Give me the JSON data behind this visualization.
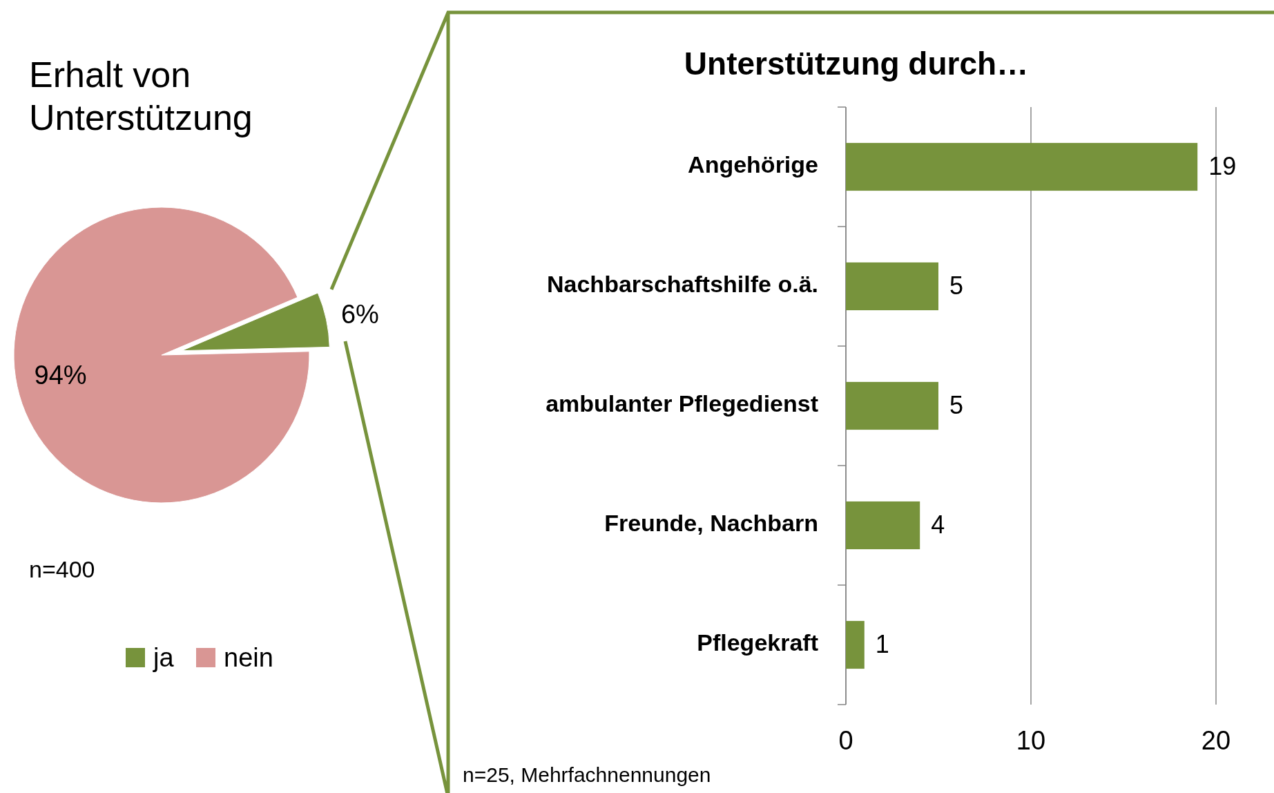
{
  "chart_data": [
    {
      "type": "pie",
      "title": "Erhalt von Unterstützung",
      "categories": [
        "ja",
        "nein"
      ],
      "values": [
        6,
        94
      ],
      "colors": [
        "#77933c",
        "#d99694"
      ],
      "value_labels": [
        "6%",
        "94%"
      ],
      "legend": "bottom",
      "annotations": [
        "n=400"
      ]
    },
    {
      "type": "bar",
      "orientation": "horizontal",
      "title": "Unterstützung durch…",
      "categories": [
        "Angehörige",
        "Nachbarschaftshilfe o.ä.",
        "ambulanter Pflegedienst",
        "Freunde, Nachbarn",
        "Pflegekraft"
      ],
      "values": [
        19,
        5,
        5,
        4,
        1
      ],
      "color": "#77933c",
      "xlim": [
        0,
        20
      ],
      "xticks": [
        0,
        10,
        20
      ],
      "grid": "x",
      "data_labels": true,
      "annotations": [
        "n=25, Mehrfachnennungen"
      ]
    }
  ]
}
